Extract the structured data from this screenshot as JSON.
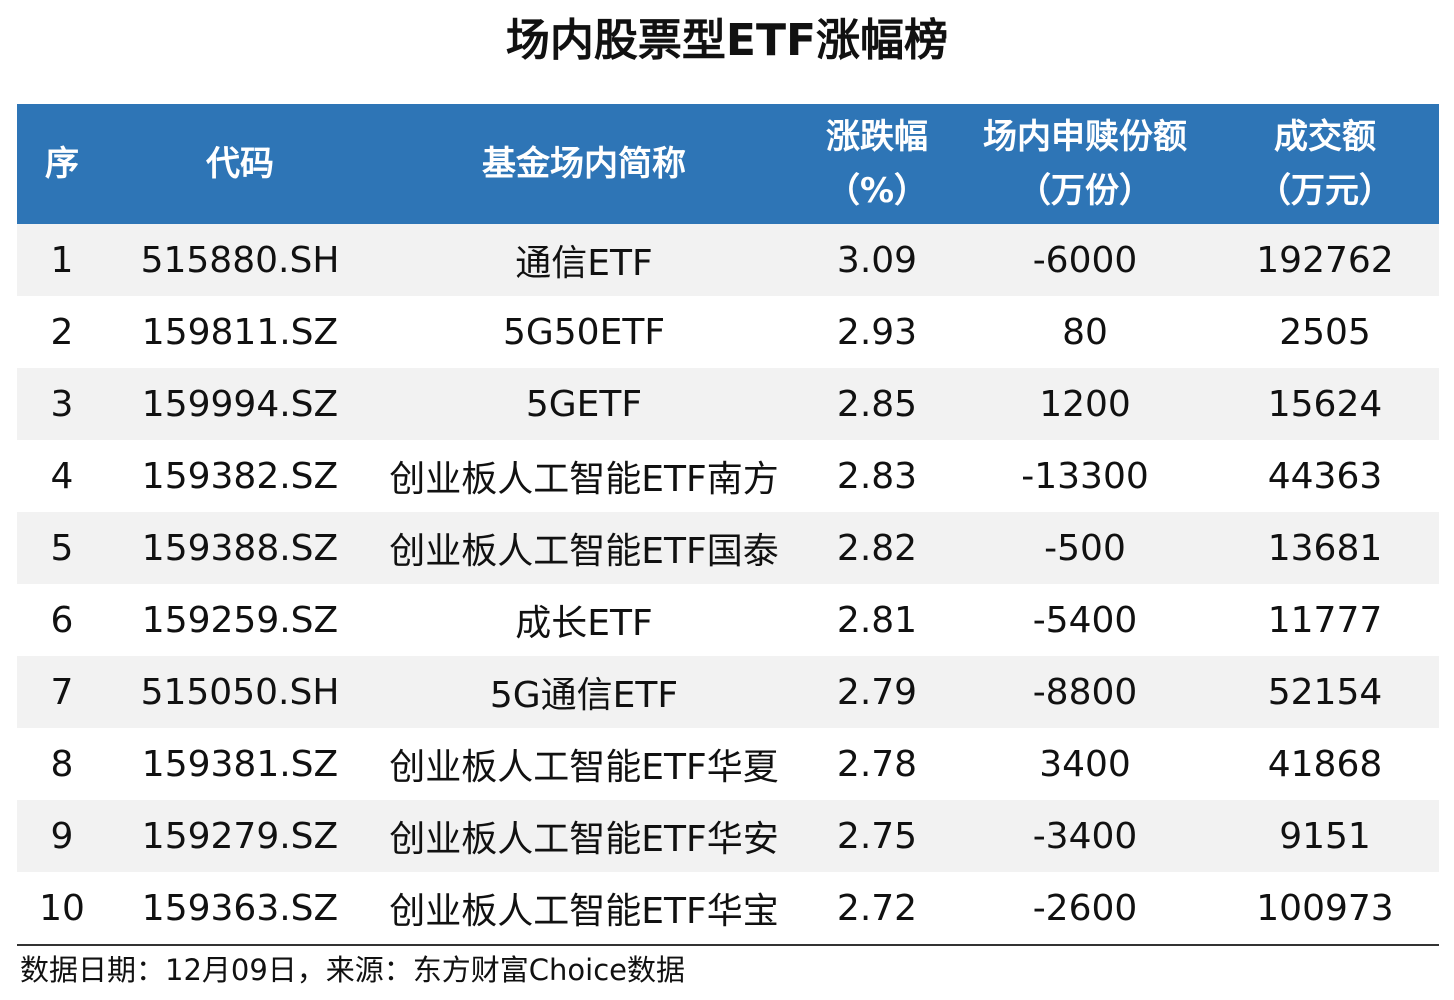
{
  "title": "场内股票型ETF涨幅榜",
  "table": {
    "headers": [
      {
        "line1": "序",
        "line2": ""
      },
      {
        "line1": "代码",
        "line2": ""
      },
      {
        "line1": "基金场内简称",
        "line2": ""
      },
      {
        "line1": "涨跌幅",
        "line2": "（%）"
      },
      {
        "line1": "场内申赎份额",
        "line2": "（万份）"
      },
      {
        "line1": "成交额",
        "line2": "（万元）"
      }
    ],
    "rows": [
      [
        "1",
        "515880.SH",
        "通信ETF",
        "3.09",
        "-6000",
        "192762"
      ],
      [
        "2",
        "159811.SZ",
        "5G50ETF",
        "2.93",
        "80",
        "2505"
      ],
      [
        "3",
        "159994.SZ",
        "5GETF",
        "2.85",
        "1200",
        "15624"
      ],
      [
        "4",
        "159382.SZ",
        "创业板人工智能ETF南方",
        "2.83",
        "-13300",
        "44363"
      ],
      [
        "5",
        "159388.SZ",
        "创业板人工智能ETF国泰",
        "2.82",
        "-500",
        "13681"
      ],
      [
        "6",
        "159259.SZ",
        "成长ETF",
        "2.81",
        "-5400",
        "11777"
      ],
      [
        "7",
        "515050.SH",
        "5G通信ETF",
        "2.79",
        "-8800",
        "52154"
      ],
      [
        "8",
        "159381.SZ",
        "创业板人工智能ETF华夏",
        "2.78",
        "3400",
        "41868"
      ],
      [
        "9",
        "159279.SZ",
        "创业板人工智能ETF华安",
        "2.75",
        "-3400",
        "9151"
      ],
      [
        "10",
        "159363.SZ",
        "创业板人工智能ETF华宝",
        "2.72",
        "-2600",
        "100973"
      ]
    ]
  },
  "footnote": "数据日期：12月09日，来源：东方财富Choice数据",
  "colors": {
    "header_bg": "#2e75b6",
    "header_text": "#ffffff",
    "row_alt_bg": "#f2f2f2",
    "row_bg": "#ffffff"
  }
}
